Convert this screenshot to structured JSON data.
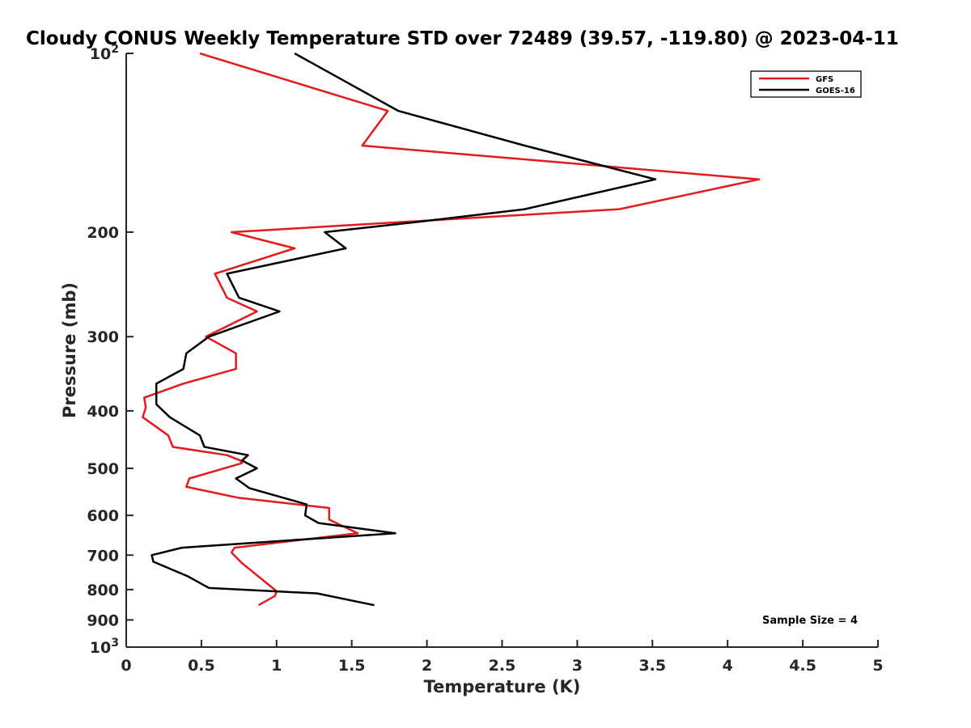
{
  "chart_data": {
    "type": "line",
    "title": "Cloudy CONUS Weekly Temperature STD over 72489 (39.57, -119.80) @ 2023-04-11",
    "xlabel": "Temperature (K)",
    "ylabel": "Pressure (mb)",
    "xlim": [
      0,
      5
    ],
    "ylim": [
      100,
      1000
    ],
    "y_scale": "log",
    "y_reversed": true,
    "grid": false,
    "legend_position": "top-right",
    "x_ticks": [
      0,
      0.5,
      1,
      1.5,
      2,
      2.5,
      3,
      3.5,
      4,
      4.5,
      5
    ],
    "x_tick_labels": [
      "0",
      "0.5",
      "1",
      "1.5",
      "2",
      "2.5",
      "3",
      "3.5",
      "4",
      "4.5",
      "5"
    ],
    "y_ticks": [
      {
        "value": 100,
        "label": "10",
        "exponent": "2"
      },
      {
        "value": 200,
        "label": "200",
        "exponent": ""
      },
      {
        "value": 300,
        "label": "300",
        "exponent": ""
      },
      {
        "value": 400,
        "label": "400",
        "exponent": ""
      },
      {
        "value": 500,
        "label": "500",
        "exponent": ""
      },
      {
        "value": 600,
        "label": "600",
        "exponent": ""
      },
      {
        "value": 700,
        "label": "700",
        "exponent": ""
      },
      {
        "value": 800,
        "label": "800",
        "exponent": ""
      },
      {
        "value": 900,
        "label": "900",
        "exponent": ""
      },
      {
        "value": 1000,
        "label": "10",
        "exponent": "3"
      }
    ],
    "series": [
      {
        "name": "GFS",
        "color": "#e41a1c",
        "points": [
          [
            0.49,
            100
          ],
          [
            1.74,
            125
          ],
          [
            1.57,
            143
          ],
          [
            4.21,
            163
          ],
          [
            3.28,
            183
          ],
          [
            0.7,
            200
          ],
          [
            1.12,
            213
          ],
          [
            0.59,
            235
          ],
          [
            0.67,
            258
          ],
          [
            0.87,
            272
          ],
          [
            0.53,
            300
          ],
          [
            0.73,
            320
          ],
          [
            0.73,
            340
          ],
          [
            0.38,
            360
          ],
          [
            0.12,
            380
          ],
          [
            0.13,
            395
          ],
          [
            0.11,
            410
          ],
          [
            0.28,
            440
          ],
          [
            0.31,
            460
          ],
          [
            0.67,
            475
          ],
          [
            0.76,
            485
          ],
          [
            0.77,
            490
          ],
          [
            0.42,
            520
          ],
          [
            0.4,
            537
          ],
          [
            0.74,
            560
          ],
          [
            1.35,
            583
          ],
          [
            1.35,
            610
          ],
          [
            1.54,
            643
          ],
          [
            0.72,
            680
          ],
          [
            0.7,
            693
          ],
          [
            0.77,
            722
          ],
          [
            1.0,
            805
          ],
          [
            0.99,
            820
          ],
          [
            0.88,
            850
          ]
        ]
      },
      {
        "name": "GOES-16",
        "color": "#000000",
        "points": [
          [
            1.12,
            100
          ],
          [
            1.81,
            125
          ],
          [
            2.65,
            143
          ],
          [
            3.52,
            163
          ],
          [
            2.65,
            183
          ],
          [
            1.96,
            192
          ],
          [
            1.32,
            200
          ],
          [
            1.46,
            213
          ],
          [
            0.67,
            235
          ],
          [
            0.75,
            258
          ],
          [
            1.02,
            272
          ],
          [
            0.55,
            300
          ],
          [
            0.4,
            320
          ],
          [
            0.38,
            340
          ],
          [
            0.2,
            360
          ],
          [
            0.2,
            390
          ],
          [
            0.29,
            410
          ],
          [
            0.49,
            440
          ],
          [
            0.52,
            460
          ],
          [
            0.81,
            475
          ],
          [
            0.77,
            485
          ],
          [
            0.87,
            500
          ],
          [
            0.73,
            520
          ],
          [
            0.82,
            540
          ],
          [
            1.2,
            575
          ],
          [
            1.19,
            600
          ],
          [
            1.28,
            618
          ],
          [
            1.79,
            643
          ],
          [
            0.37,
            680
          ],
          [
            0.17,
            700
          ],
          [
            0.18,
            718
          ],
          [
            0.41,
            760
          ],
          [
            0.55,
            795
          ],
          [
            1.27,
            812
          ],
          [
            1.65,
            850
          ]
        ]
      }
    ],
    "annotations": [
      {
        "text": "Sample Size = 4"
      }
    ]
  }
}
